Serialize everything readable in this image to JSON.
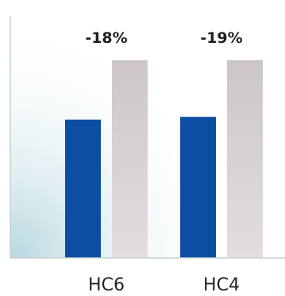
{
  "chart_data": {
    "type": "bar",
    "categories": [
      "HC6",
      "HC4"
    ],
    "series": [
      {
        "values": [
          100,
          102
        ],
        "color": "#0d4ea3"
      },
      {
        "values": [
          143,
          143
        ],
        "color": "#cfc9c9"
      }
    ],
    "annotations": [
      "-18%",
      "-19%"
    ],
    "ylim": [
      0,
      175
    ],
    "grid": false,
    "legend": "none",
    "axis_color": "#c7cdd2",
    "background_gradient": [
      "#aed3dc",
      "#ffffff"
    ]
  }
}
